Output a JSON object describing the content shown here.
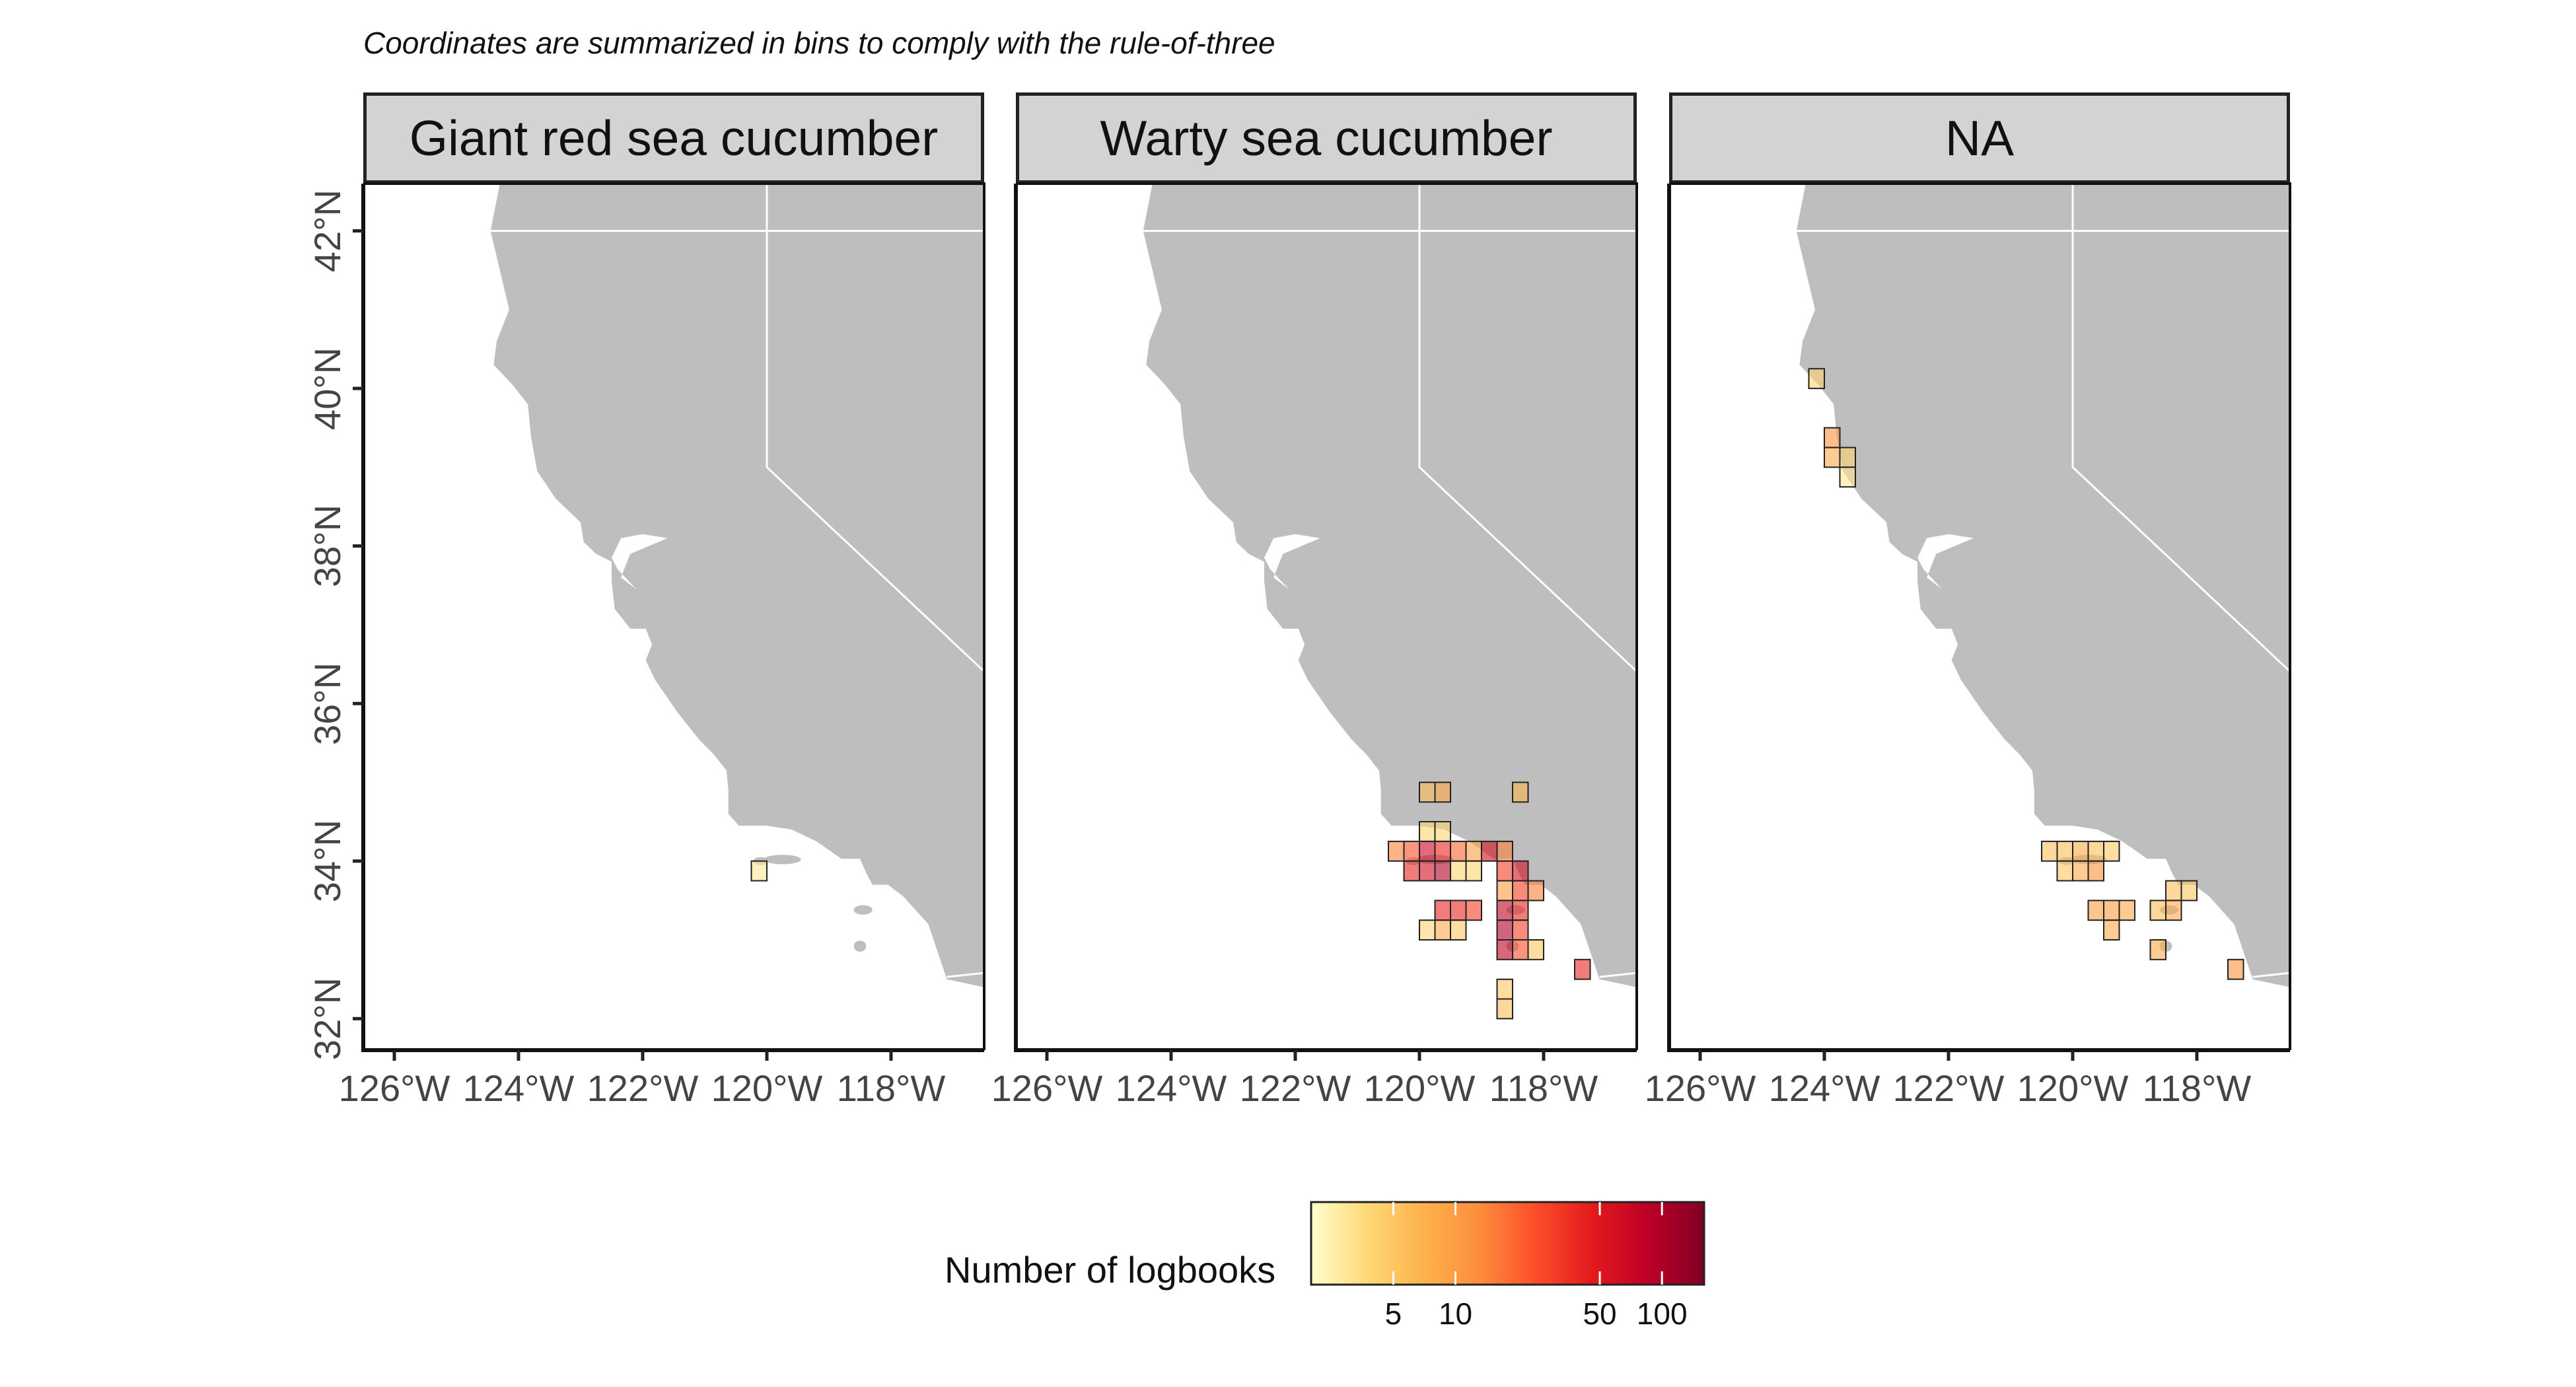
{
  "caption": "Coordinates are summarized in bins to comply with the rule-of-three",
  "colors": {
    "land": "#bebebe",
    "sea": "#ffffff",
    "border": "#ffffff",
    "strip": "#d3d3d3",
    "scale": [
      "#ffffcc",
      "#fed976",
      "#feb24c",
      "#fd8d3c",
      "#fc4e2a",
      "#e31a1c",
      "#bd0026",
      "#800026"
    ]
  },
  "legend": {
    "title": "Number of logbooks",
    "breaks": [
      "5",
      "10",
      "50",
      "100"
    ],
    "scale": "log"
  },
  "chart_data": {
    "type": "heatmap",
    "xlim": [
      -126.5,
      -116.5
    ],
    "ylim": [
      31.6,
      42.6
    ],
    "x_ticks": [
      -126,
      -124,
      -122,
      -120,
      -118
    ],
    "y_ticks": [
      32,
      34,
      36,
      38,
      40,
      42
    ],
    "x_tick_labels": [
      "126°W",
      "124°W",
      "122°W",
      "120°W",
      "118°W"
    ],
    "y_tick_labels": [
      "32°N",
      "34°N",
      "36°N",
      "38°N",
      "40°N",
      "42°N"
    ],
    "panels": [
      {
        "name": "Giant red sea cucumber",
        "cells": [
          {
            "lon": -120.125,
            "lat": 33.875,
            "value": 3
          }
        ]
      },
      {
        "name": "Warty sea cucumber",
        "cells": [
          {
            "lon": -119.875,
            "lat": 34.875,
            "value": 6
          },
          {
            "lon": -119.625,
            "lat": 34.875,
            "value": 8
          },
          {
            "lon": -118.375,
            "lat": 34.875,
            "value": 7
          },
          {
            "lon": -119.875,
            "lat": 34.375,
            "value": 4
          },
          {
            "lon": -119.625,
            "lat": 34.375,
            "value": 4
          },
          {
            "lon": -120.375,
            "lat": 34.125,
            "value": 15
          },
          {
            "lon": -120.125,
            "lat": 34.125,
            "value": 25
          },
          {
            "lon": -119.875,
            "lat": 34.125,
            "value": 70
          },
          {
            "lon": -119.625,
            "lat": 34.125,
            "value": 40
          },
          {
            "lon": -119.375,
            "lat": 34.125,
            "value": 20
          },
          {
            "lon": -119.125,
            "lat": 34.125,
            "value": 10
          },
          {
            "lon": -118.875,
            "lat": 34.125,
            "value": 60
          },
          {
            "lon": -118.625,
            "lat": 34.125,
            "value": 15
          },
          {
            "lon": -120.125,
            "lat": 33.875,
            "value": 40
          },
          {
            "lon": -119.875,
            "lat": 33.875,
            "value": 60
          },
          {
            "lon": -119.625,
            "lat": 33.875,
            "value": 100
          },
          {
            "lon": -119.375,
            "lat": 33.875,
            "value": 4
          },
          {
            "lon": -119.125,
            "lat": 33.875,
            "value": 4
          },
          {
            "lon": -118.625,
            "lat": 33.875,
            "value": 30
          },
          {
            "lon": -118.375,
            "lat": 33.875,
            "value": 60
          },
          {
            "lon": -118.625,
            "lat": 33.625,
            "value": 10
          },
          {
            "lon": -118.375,
            "lat": 33.625,
            "value": 30
          },
          {
            "lon": -118.125,
            "lat": 33.625,
            "value": 15
          },
          {
            "lon": -119.625,
            "lat": 33.375,
            "value": 40
          },
          {
            "lon": -119.375,
            "lat": 33.375,
            "value": 40
          },
          {
            "lon": -119.125,
            "lat": 33.375,
            "value": 30
          },
          {
            "lon": -118.625,
            "lat": 33.375,
            "value": 80
          },
          {
            "lon": -118.375,
            "lat": 33.375,
            "value": 40
          },
          {
            "lon": -119.875,
            "lat": 33.125,
            "value": 4
          },
          {
            "lon": -119.625,
            "lat": 33.125,
            "value": 8
          },
          {
            "lon": -119.375,
            "lat": 33.125,
            "value": 5
          },
          {
            "lon": -118.625,
            "lat": 33.125,
            "value": 100
          },
          {
            "lon": -118.375,
            "lat": 33.125,
            "value": 30
          },
          {
            "lon": -118.625,
            "lat": 32.875,
            "value": 80
          },
          {
            "lon": -118.375,
            "lat": 32.875,
            "value": 25
          },
          {
            "lon": -118.125,
            "lat": 32.875,
            "value": 5
          },
          {
            "lon": -117.375,
            "lat": 32.625,
            "value": 40
          },
          {
            "lon": -118.625,
            "lat": 32.375,
            "value": 5
          },
          {
            "lon": -118.625,
            "lat": 32.125,
            "value": 6
          }
        ]
      },
      {
        "name": "NA",
        "cells": [
          {
            "lon": -124.125,
            "lat": 40.125,
            "value": 4
          },
          {
            "lon": -123.875,
            "lat": 39.375,
            "value": 12
          },
          {
            "lon": -123.875,
            "lat": 39.125,
            "value": 8
          },
          {
            "lon": -123.625,
            "lat": 39.125,
            "value": 4
          },
          {
            "lon": -123.625,
            "lat": 38.875,
            "value": 3
          },
          {
            "lon": -120.375,
            "lat": 34.125,
            "value": 6
          },
          {
            "lon": -120.125,
            "lat": 34.125,
            "value": 6
          },
          {
            "lon": -119.875,
            "lat": 34.125,
            "value": 8
          },
          {
            "lon": -119.625,
            "lat": 34.125,
            "value": 6
          },
          {
            "lon": -119.375,
            "lat": 34.125,
            "value": 5
          },
          {
            "lon": -120.125,
            "lat": 33.875,
            "value": 5
          },
          {
            "lon": -119.875,
            "lat": 33.875,
            "value": 8
          },
          {
            "lon": -119.625,
            "lat": 33.875,
            "value": 12
          },
          {
            "lon": -118.375,
            "lat": 33.625,
            "value": 6
          },
          {
            "lon": -118.125,
            "lat": 33.625,
            "value": 5
          },
          {
            "lon": -119.625,
            "lat": 33.375,
            "value": 10
          },
          {
            "lon": -119.375,
            "lat": 33.375,
            "value": 10
          },
          {
            "lon": -119.125,
            "lat": 33.375,
            "value": 8
          },
          {
            "lon": -118.625,
            "lat": 33.375,
            "value": 6
          },
          {
            "lon": -118.375,
            "lat": 33.375,
            "value": 8
          },
          {
            "lon": -119.375,
            "lat": 33.125,
            "value": 8
          },
          {
            "lon": -118.625,
            "lat": 32.875,
            "value": 8
          },
          {
            "lon": -117.375,
            "lat": 32.625,
            "value": 12
          }
        ]
      }
    ]
  }
}
